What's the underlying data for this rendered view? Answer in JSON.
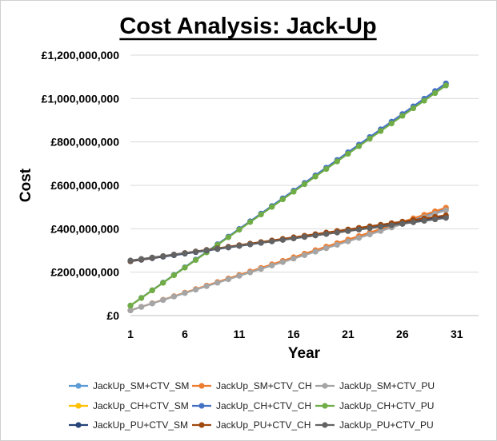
{
  "chart_data": {
    "type": "line",
    "title": "Cost Analysis: Jack-Up",
    "xlabel": "Year",
    "ylabel": "Cost",
    "xlim": [
      1,
      33
    ],
    "ylim": [
      0,
      1200000000
    ],
    "x_ticks": [
      1,
      6,
      11,
      16,
      21,
      26,
      31
    ],
    "x_tick_labels": [
      "1",
      "6",
      "11",
      "16",
      "21",
      "26",
      "31"
    ],
    "y_ticks": [
      0,
      200000000,
      400000000,
      600000000,
      800000000,
      1000000000,
      1200000000
    ],
    "y_tick_labels": [
      "£0",
      "£200,000,000",
      "£400,000,000",
      "£600,000,000",
      "£800,000,000",
      "£1,000,000,000",
      "£1,200,000,000"
    ],
    "grid": "horizontal",
    "legend_position": "bottom",
    "x": [
      1,
      2,
      3,
      4,
      5,
      6,
      7,
      8,
      9,
      10,
      11,
      12,
      13,
      14,
      15,
      16,
      17,
      18,
      19,
      20,
      21,
      22,
      23,
      24,
      25,
      26,
      27,
      28,
      29,
      30
    ],
    "series": [
      {
        "name": "JackUp_SM+CTV_SM",
        "color": "#5b9bd5",
        "start": 24000000,
        "end": 490000000
      },
      {
        "name": "JackUp_SM+CTV_CH",
        "color": "#ed7d31",
        "start": 24000000,
        "end": 497000000
      },
      {
        "name": "JackUp_SM+CTV_PU",
        "color": "#a5a5a5",
        "start": 24000000,
        "end": 485000000
      },
      {
        "name": "JackUp_CH+CTV_SM",
        "color": "#ffc000",
        "start": 46000000,
        "end": 1065000000
      },
      {
        "name": "JackUp_CH+CTV_CH",
        "color": "#4472c4",
        "start": 46000000,
        "end": 1070000000
      },
      {
        "name": "JackUp_CH+CTV_PU",
        "color": "#70ad47",
        "start": 46000000,
        "end": 1060000000
      },
      {
        "name": "JackUp_PU+CTV_SM",
        "color": "#264478",
        "start": 250000000,
        "end": 455000000
      },
      {
        "name": "JackUp_PU+CTV_CH",
        "color": "#9e480e",
        "start": 252000000,
        "end": 462000000
      },
      {
        "name": "JackUp_PU+CTV_PU",
        "color": "#636363",
        "start": 254000000,
        "end": 450000000
      }
    ]
  }
}
